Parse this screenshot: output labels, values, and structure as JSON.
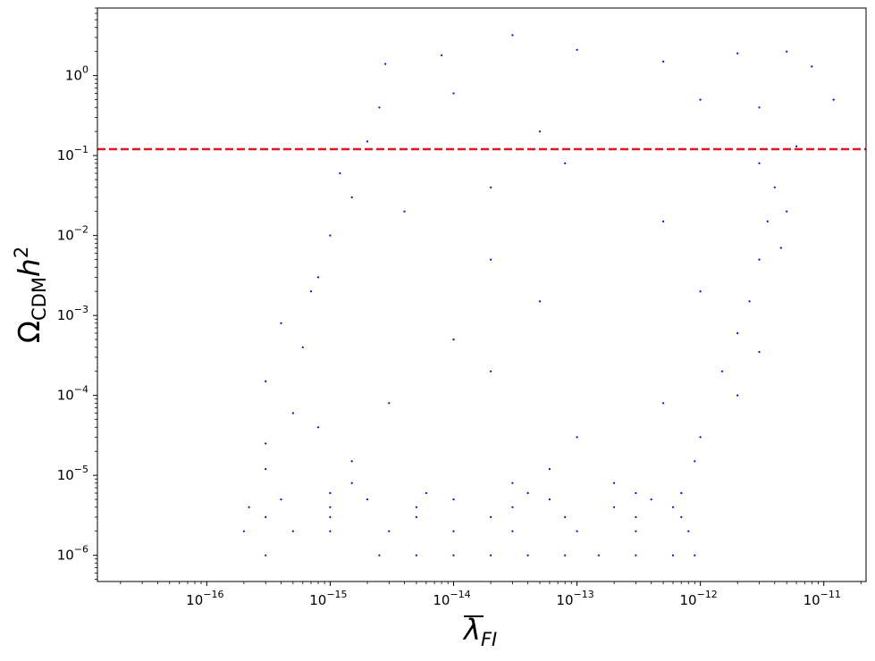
{
  "chart_data": {
    "type": "scatter",
    "title": "",
    "xscale": "log",
    "yscale": "log",
    "xlim": [
      1.3e-17,
      2.2e-11
    ],
    "ylim": [
      4.7e-07,
      7.0
    ],
    "xticks": [
      {
        "value": 1e-16,
        "base": "10",
        "exp": "−16"
      },
      {
        "value": 1e-15,
        "base": "10",
        "exp": "−15"
      },
      {
        "value": 1e-14,
        "base": "10",
        "exp": "−14"
      },
      {
        "value": 1e-13,
        "base": "10",
        "exp": "−13"
      },
      {
        "value": 1e-12,
        "base": "10",
        "exp": "−12"
      },
      {
        "value": 1e-11,
        "base": "10",
        "exp": "−11"
      }
    ],
    "yticks": [
      {
        "value": 1e-06,
        "base": "10",
        "exp": "−6"
      },
      {
        "value": 1e-05,
        "base": "10",
        "exp": "−5"
      },
      {
        "value": 0.0001,
        "base": "10",
        "exp": "−4"
      },
      {
        "value": 0.001,
        "base": "10",
        "exp": "−3"
      },
      {
        "value": 0.01,
        "base": "10",
        "exp": "−2"
      },
      {
        "value": 0.1,
        "base": "10",
        "exp": "−1"
      },
      {
        "value": 1,
        "base": "10",
        "exp": "0"
      }
    ],
    "xlabel": {
      "main": "λ",
      "sub": "FI",
      "overline": true
    },
    "ylabel": {
      "main": "Ω",
      "sub": "CDM",
      "rest": "h",
      "sup": "2"
    },
    "reference_line": {
      "y": 0.12,
      "color": "#e8141c",
      "style": "dashed"
    },
    "series": [
      {
        "color": "#0000ff",
        "approx_point_count": 6000,
        "points": [
          [
            2.5e-15,
            1e-06
          ],
          [
            5e-15,
            1e-06
          ],
          [
            1e-14,
            1e-06
          ],
          [
            2e-14,
            1e-06
          ],
          [
            4e-14,
            1e-06
          ],
          [
            8e-14,
            1e-06
          ],
          [
            1.5e-13,
            1e-06
          ],
          [
            3e-13,
            1e-06
          ],
          [
            6e-13,
            1e-06
          ],
          [
            9e-13,
            1e-06
          ],
          [
            3e-16,
            1e-06
          ],
          [
            2e-16,
            2e-06
          ],
          [
            5e-16,
            2e-06
          ],
          [
            1e-15,
            2e-06
          ],
          [
            3e-15,
            2e-06
          ],
          [
            1e-14,
            2e-06
          ],
          [
            3e-14,
            2e-06
          ],
          [
            1e-13,
            2e-06
          ],
          [
            3e-13,
            2e-06
          ],
          [
            8e-13,
            2e-06
          ],
          [
            3e-16,
            3e-06
          ],
          [
            1e-15,
            3e-06
          ],
          [
            5e-15,
            3e-06
          ],
          [
            2e-14,
            3e-06
          ],
          [
            8e-14,
            3e-06
          ],
          [
            3e-13,
            3e-06
          ],
          [
            7e-13,
            3e-06
          ],
          [
            2.2e-16,
            4e-06
          ],
          [
            1e-15,
            4e-06
          ],
          [
            5e-15,
            4e-06
          ],
          [
            3e-14,
            4e-06
          ],
          [
            2e-13,
            4e-06
          ],
          [
            6e-13,
            4e-06
          ],
          [
            4e-16,
            5e-06
          ],
          [
            2e-15,
            5e-06
          ],
          [
            1e-14,
            5e-06
          ],
          [
            6e-14,
            5e-06
          ],
          [
            4e-13,
            5e-06
          ],
          [
            1e-15,
            6e-06
          ],
          [
            6e-15,
            6e-06
          ],
          [
            4e-14,
            6e-06
          ],
          [
            3e-13,
            6e-06
          ],
          [
            7e-13,
            6e-06
          ],
          [
            1.5e-15,
            8e-06
          ],
          [
            3e-14,
            8e-06
          ],
          [
            2e-13,
            8e-06
          ],
          [
            3e-16,
            1.2e-05
          ],
          [
            1.5e-15,
            1.5e-05
          ],
          [
            6e-14,
            1.2e-05
          ],
          [
            9e-13,
            1.5e-05
          ],
          [
            3e-16,
            2.5e-05
          ],
          [
            8e-16,
            4e-05
          ],
          [
            1e-13,
            3e-05
          ],
          [
            1e-12,
            3e-05
          ],
          [
            5e-16,
            6e-05
          ],
          [
            3e-15,
            8e-05
          ],
          [
            5e-13,
            8e-05
          ],
          [
            2e-12,
            0.0001
          ],
          [
            3e-16,
            0.00015
          ],
          [
            2e-14,
            0.0002
          ],
          [
            1.5e-12,
            0.0002
          ],
          [
            6e-16,
            0.0004
          ],
          [
            1e-14,
            0.0005
          ],
          [
            2e-12,
            0.0006
          ],
          [
            3e-12,
            0.00035
          ],
          [
            4e-16,
            0.0008
          ],
          [
            7e-16,
            0.002
          ],
          [
            5e-14,
            0.0015
          ],
          [
            1e-12,
            0.002
          ],
          [
            2.5e-12,
            0.0015
          ],
          [
            8e-16,
            0.003
          ],
          [
            2e-14,
            0.005
          ],
          [
            3e-12,
            0.005
          ],
          [
            1e-15,
            0.01
          ],
          [
            4e-15,
            0.02
          ],
          [
            5e-13,
            0.015
          ],
          [
            3.5e-12,
            0.015
          ],
          [
            4.5e-12,
            0.007
          ],
          [
            1.5e-15,
            0.03
          ],
          [
            2e-14,
            0.04
          ],
          [
            4e-12,
            0.04
          ],
          [
            1.2e-15,
            0.06
          ],
          [
            8e-14,
            0.08
          ],
          [
            3e-12,
            0.08
          ],
          [
            5e-12,
            0.02
          ],
          [
            2e-15,
            0.15
          ],
          [
            5e-14,
            0.2
          ],
          [
            6e-12,
            0.13
          ],
          [
            2.5e-15,
            0.4
          ],
          [
            1e-14,
            0.6
          ],
          [
            1e-12,
            0.5
          ],
          [
            3e-12,
            0.4
          ],
          [
            2.8e-15,
            1.4
          ],
          [
            8e-15,
            1.8
          ],
          [
            3e-14,
            3.2
          ],
          [
            1e-13,
            2.1
          ],
          [
            5e-13,
            1.5
          ],
          [
            2e-12,
            1.9
          ],
          [
            5e-12,
            2.0
          ],
          [
            8e-12,
            1.3
          ],
          [
            1.2e-11,
            0.5
          ]
        ]
      }
    ]
  }
}
